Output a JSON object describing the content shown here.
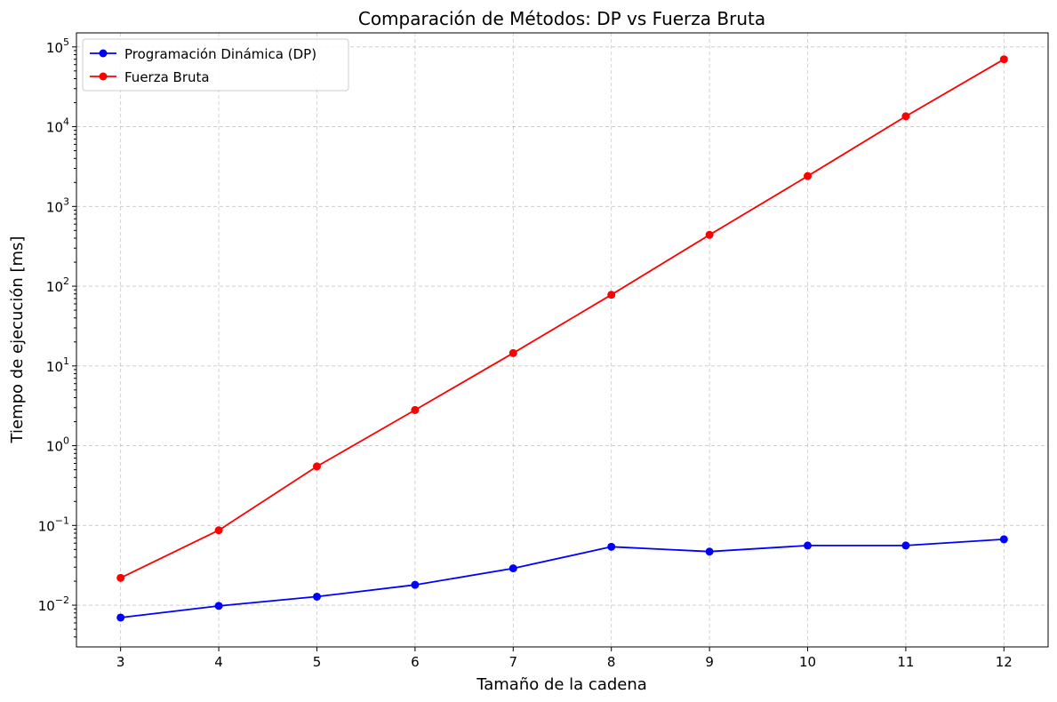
{
  "chart_data": {
    "type": "line",
    "title": "Comparación de Métodos: DP vs Fuerza Bruta",
    "xlabel": "Tamaño de la cadena",
    "ylabel": "Tiempo de ejecución [ms]",
    "yscale": "log",
    "x": [
      3,
      4,
      5,
      6,
      7,
      8,
      9,
      10,
      11,
      12
    ],
    "xlim": [
      2.55,
      12.45
    ],
    "ylim": [
      0.003,
      150000
    ],
    "ytick_values": [
      0.01,
      0.1,
      1,
      10,
      100,
      1000,
      10000,
      100000
    ],
    "ytick_labels": [
      {
        "base": "10",
        "exp": "−2"
      },
      {
        "base": "10",
        "exp": "−1"
      },
      {
        "base": "10",
        "exp": "0"
      },
      {
        "base": "10",
        "exp": "1"
      },
      {
        "base": "10",
        "exp": "2"
      },
      {
        "base": "10",
        "exp": "3"
      },
      {
        "base": "10",
        "exp": "4"
      },
      {
        "base": "10",
        "exp": "5"
      }
    ],
    "grid": true,
    "legend_position": "top-left",
    "series": [
      {
        "name": "Programación Dinámica (DP)",
        "color": "#0000ff",
        "values": [
          0.007,
          0.0098,
          0.0128,
          0.018,
          0.029,
          0.054,
          0.047,
          0.056,
          0.056,
          0.067
        ]
      },
      {
        "name": "Fuerza Bruta",
        "color": "#ff0000",
        "values": [
          0.022,
          0.087,
          0.55,
          2.8,
          14.5,
          78,
          440,
          2400,
          13500,
          70000
        ]
      }
    ]
  }
}
